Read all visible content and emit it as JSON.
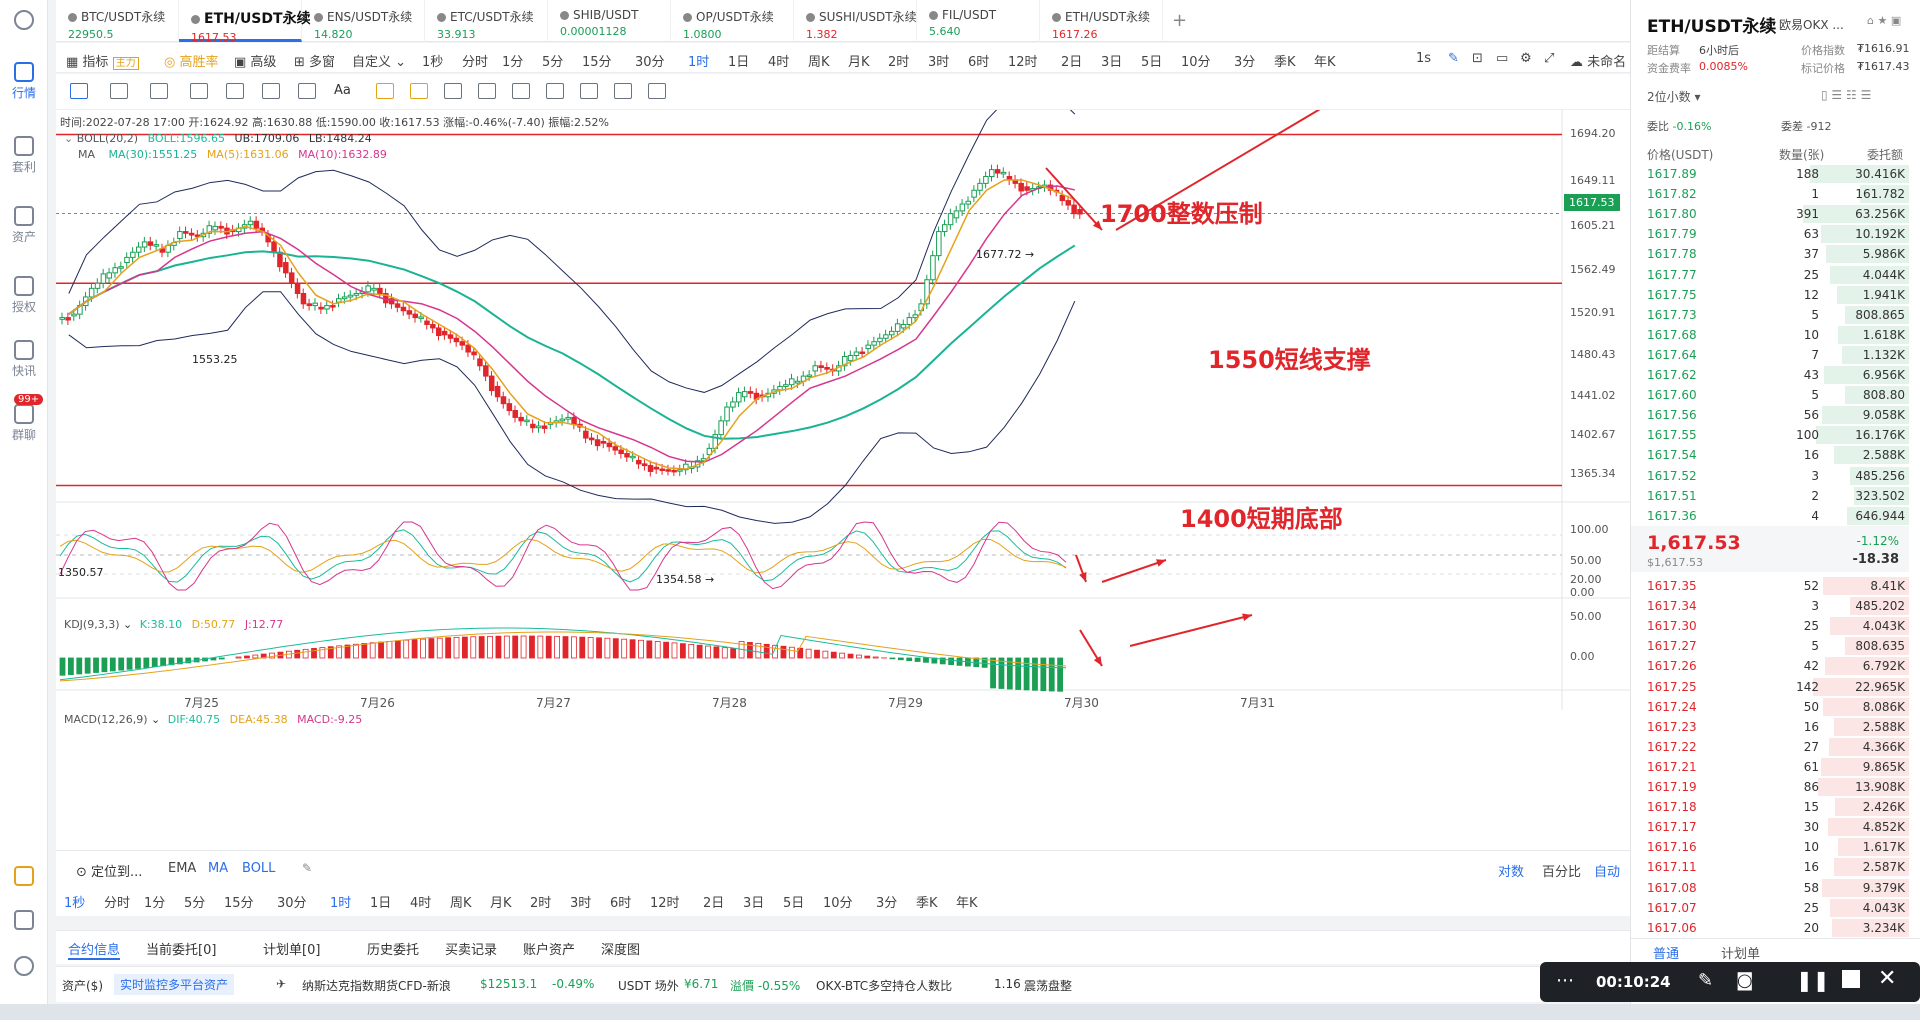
{
  "leftbar": {
    "items": [
      "行情",
      "套利",
      "资产",
      "授权",
      "快讯",
      "群聊"
    ],
    "badge": "99+"
  },
  "tabs": [
    {
      "name": "BTC/USDT永续",
      "price": "22950.5",
      "color": "#1a9f55"
    },
    {
      "name": "ETH/USDT永续",
      "price": "1617.53",
      "color": "#e0262b"
    },
    {
      "name": "ENS/USDT永续",
      "price": "14.820",
      "color": "#1a9f55"
    },
    {
      "name": "ETC/USDT永续",
      "price": "33.913",
      "color": "#1a9f55"
    },
    {
      "name": "SHIB/USDT",
      "price": "0.00001128",
      "color": "#1a9f55"
    },
    {
      "name": "OP/USDT永续",
      "price": "1.0800",
      "color": "#1a9f55"
    },
    {
      "name": "SUSHI/USDT永续",
      "price": "1.382",
      "color": "#e0262b"
    },
    {
      "name": "FIL/USDT",
      "price": "5.640",
      "color": "#1a9f55"
    },
    {
      "name": "ETH/USDT永续",
      "price": "1617.26",
      "color": "#e0262b"
    }
  ],
  "toolbar": {
    "indicator": "指标",
    "main_badge": "主力",
    "win": "高胜率",
    "advanced": "高级",
    "multi": "多窗",
    "custom": "自定义",
    "timeframes": [
      "1秒",
      "分时",
      "1分",
      "5分",
      "15分",
      "30分",
      "1时",
      "1日",
      "4时",
      "周K",
      "月K",
      "2时",
      "3时",
      "6时",
      "12时",
      "2日",
      "3日",
      "5日",
      "10分",
      "3分",
      "季K",
      "年K"
    ],
    "active_tf": "1时",
    "interval": "1s",
    "unnamed": "未命名"
  },
  "chart_info": {
    "line1": "时间:2022-07-28 17:00  开:1624.92  高:1630.88  低:1590.00  收:1617.53  涨幅:-0.46%(-7.40)  振幅:2.52%",
    "boll": "BOLL(20,2)",
    "boll_mid": "BOLL:1596.65",
    "boll_ub": "UB:1709.06",
    "boll_lb": "LB:1484.24",
    "ma_label": "MA",
    "ma30": "MA(30):1551.25",
    "ma5": "MA(5):1631.06",
    "ma10": "MA(10):1632.89",
    "kdj_label": "KDJ(9,3,3)",
    "kdj_k": "K:38.10",
    "kdj_d": "D:50.77",
    "kdj_j": "J:12.77",
    "macd_label": "MACD(12,26,9)",
    "macd_dif": "DIF:40.75",
    "macd_dea": "DEA:45.38",
    "macd_macd": "MACD:-9.25"
  },
  "axis": {
    "y": [
      "1694.20",
      "1649.11",
      "1605.21",
      "1562.49",
      "1520.91",
      "1480.43",
      "1441.02",
      "1402.67",
      "1365.34"
    ],
    "current": "1617.53",
    "kdj_y": [
      "100.00",
      "50.00",
      "20.00",
      "0.00"
    ],
    "macd_y": [
      "50.00",
      "0.00"
    ],
    "x": [
      "7月25",
      "7月26",
      "7月27",
      "7月28",
      "7月29",
      "7月30",
      "7月31"
    ]
  },
  "marks": {
    "high": "1677.72",
    "low": "1354.58",
    "left1": "1553.25",
    "left2": "1350.57"
  },
  "annotations": {
    "a1": "1700整数压制",
    "a2": "1550短线支撑",
    "a3": "1400短期底部"
  },
  "lines": {
    "resist": 1694,
    "support": 1550,
    "bottom": 1354
  },
  "bottom_bar": {
    "locate": "定位到...",
    "ema": "EMA",
    "ma": "MA",
    "boll": "BOLL",
    "log": "对数",
    "pct": "百分比",
    "auto": "自动",
    "tfs": [
      "1秒",
      "分时",
      "1分",
      "5分",
      "15分",
      "30分",
      "1时",
      "1日",
      "4时",
      "周K",
      "月K",
      "2时",
      "3时",
      "6时",
      "12时",
      "2日",
      "3日",
      "5日",
      "10分",
      "3分",
      "季K",
      "年K"
    ]
  },
  "info_tabs": [
    "合约信息",
    "当前委托[0]",
    "计划单[0]",
    "历史委托",
    "买卖记录",
    "账户资产",
    "深度图"
  ],
  "status": {
    "assets": "资产($)",
    "monitor": "实时监控多平台资产",
    "nasdaq": "纳斯达克指数期货CFD-新浪",
    "nasdaq_val": "$12513.1",
    "nasdaq_chg": "-0.49%",
    "usdt": "USDT 场外",
    "usdt_val": "¥6.71",
    "usdt_prem": "溢價 -0.55%",
    "okx": "OKX-BTC多空持仓人数比",
    "okx_val": "1.16",
    "okx_state": "震荡盘整"
  },
  "right": {
    "title": "ETH/USDT永续",
    "exchange": "欧易OKX ...",
    "settle_label": "距结算",
    "settle": "6小时后",
    "index_label": "价格指数",
    "index": "₮1616.91",
    "fund_label": "资金费率",
    "fund": "0.0085%",
    "mark_label": "标记价格",
    "mark": "₮1617.43",
    "decimals": "2位小数",
    "ratio_label": "委比",
    "ratio": "-0.16%",
    "diff_label": "委差",
    "diff": "-912",
    "col_price": "价格(USDT)",
    "col_qty": "数量(张)",
    "col_amt": "委托额",
    "last": "1,617.53",
    "last_usd": "$1,617.53",
    "chg_pct": "-1.12%",
    "chg": "-18.38",
    "tab_normal": "普通",
    "tab_plan": "计划单"
  },
  "asks": [
    [
      "1617.89",
      "188",
      "30.416K"
    ],
    [
      "1617.82",
      "1",
      "161.782"
    ],
    [
      "1617.80",
      "391",
      "63.256K"
    ],
    [
      "1617.79",
      "63",
      "10.192K"
    ],
    [
      "1617.78",
      "37",
      "5.986K"
    ],
    [
      "1617.77",
      "25",
      "4.044K"
    ],
    [
      "1617.75",
      "12",
      "1.941K"
    ],
    [
      "1617.73",
      "5",
      "808.865"
    ],
    [
      "1617.68",
      "10",
      "1.618K"
    ],
    [
      "1617.64",
      "7",
      "1.132K"
    ],
    [
      "1617.62",
      "43",
      "6.956K"
    ],
    [
      "1617.60",
      "5",
      "808.80"
    ],
    [
      "1617.56",
      "56",
      "9.058K"
    ],
    [
      "1617.55",
      "100",
      "16.176K"
    ],
    [
      "1617.54",
      "16",
      "2.588K"
    ],
    [
      "1617.52",
      "3",
      "485.256"
    ],
    [
      "1617.51",
      "2",
      "323.502"
    ],
    [
      "1617.36",
      "4",
      "646.944"
    ]
  ],
  "bids": [
    [
      "1617.35",
      "52",
      "8.41K"
    ],
    [
      "1617.34",
      "3",
      "485.202"
    ],
    [
      "1617.30",
      "25",
      "4.043K"
    ],
    [
      "1617.27",
      "5",
      "808.635"
    ],
    [
      "1617.26",
      "42",
      "6.792K"
    ],
    [
      "1617.25",
      "142",
      "22.965K"
    ],
    [
      "1617.24",
      "50",
      "8.086K"
    ],
    [
      "1617.23",
      "16",
      "2.588K"
    ],
    [
      "1617.22",
      "27",
      "4.366K"
    ],
    [
      "1617.21",
      "61",
      "9.865K"
    ],
    [
      "1617.19",
      "86",
      "13.908K"
    ],
    [
      "1617.18",
      "15",
      "2.426K"
    ],
    [
      "1617.17",
      "30",
      "4.852K"
    ],
    [
      "1617.16",
      "10",
      "1.617K"
    ],
    [
      "1617.11",
      "16",
      "2.587K"
    ],
    [
      "1617.08",
      "58",
      "9.379K"
    ],
    [
      "1617.07",
      "25",
      "4.043K"
    ],
    [
      "1617.06",
      "20",
      "3.234K"
    ]
  ],
  "recorder": {
    "time": "00:10:24"
  },
  "chart_data": {
    "type": "candlestick",
    "ylim": [
      1340,
      1710
    ],
    "x": [
      "7月25",
      "7月26",
      "7月27",
      "7月28",
      "7月29",
      "7月30",
      "7月31"
    ],
    "close_path": [
      1520,
      1545,
      1560,
      1575,
      1590,
      1580,
      1600,
      1595,
      1605,
      1600,
      1610,
      1590,
      1560,
      1530,
      1525,
      1535,
      1540,
      1545,
      1530,
      1520,
      1510,
      1500,
      1490,
      1470,
      1440,
      1420,
      1410,
      1415,
      1420,
      1400,
      1395,
      1385,
      1375,
      1370,
      1368,
      1372,
      1390,
      1430,
      1445,
      1440,
      1450,
      1455,
      1470,
      1465,
      1480,
      1490,
      1500,
      1510,
      1530,
      1600,
      1620,
      1640,
      1660,
      1650,
      1640,
      1645,
      1630,
      1617
    ]
  }
}
